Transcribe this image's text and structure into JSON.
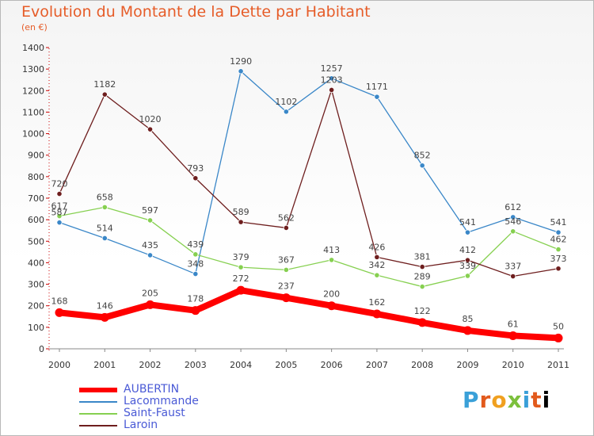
{
  "title": "Evolution du Montant de la Dette par Habitant",
  "subtitle": "(en €)",
  "logo": "Proxiti",
  "chart_data": {
    "type": "line",
    "title": "Evolution du Montant de la Dette par Habitant",
    "subtitle": "(en €)",
    "xlabel": "",
    "ylabel": "",
    "x": [
      "2000",
      "2001",
      "2002",
      "2003",
      "2004",
      "2005",
      "2006",
      "2007",
      "2008",
      "2009",
      "2010",
      "2011"
    ],
    "ylim": [
      0,
      1400
    ],
    "yticks": [
      0,
      100,
      200,
      300,
      400,
      500,
      600,
      700,
      800,
      900,
      1000,
      1100,
      1200,
      1300,
      1400
    ],
    "grid": false,
    "legend_position": "bottom-left",
    "series": [
      {
        "name": "AUBERTIN",
        "color": "#ff0000",
        "values": [
          168,
          146,
          205,
          178,
          272,
          237,
          200,
          162,
          122,
          85,
          61,
          50
        ]
      },
      {
        "name": "Lacommande",
        "color": "#3a87c8",
        "values": [
          587,
          514,
          435,
          348,
          1290,
          1102,
          1257,
          1171,
          852,
          541,
          612,
          541
        ]
      },
      {
        "name": "Saint-Faust",
        "color": "#86d050",
        "values": [
          617,
          658,
          597,
          439,
          379,
          367,
          413,
          342,
          289,
          339,
          546,
          462
        ]
      },
      {
        "name": "Laroin",
        "color": "#6e1e1e",
        "values": [
          720,
          1182,
          1020,
          793,
          589,
          562,
          1203,
          426,
          381,
          412,
          337,
          373
        ]
      }
    ]
  }
}
